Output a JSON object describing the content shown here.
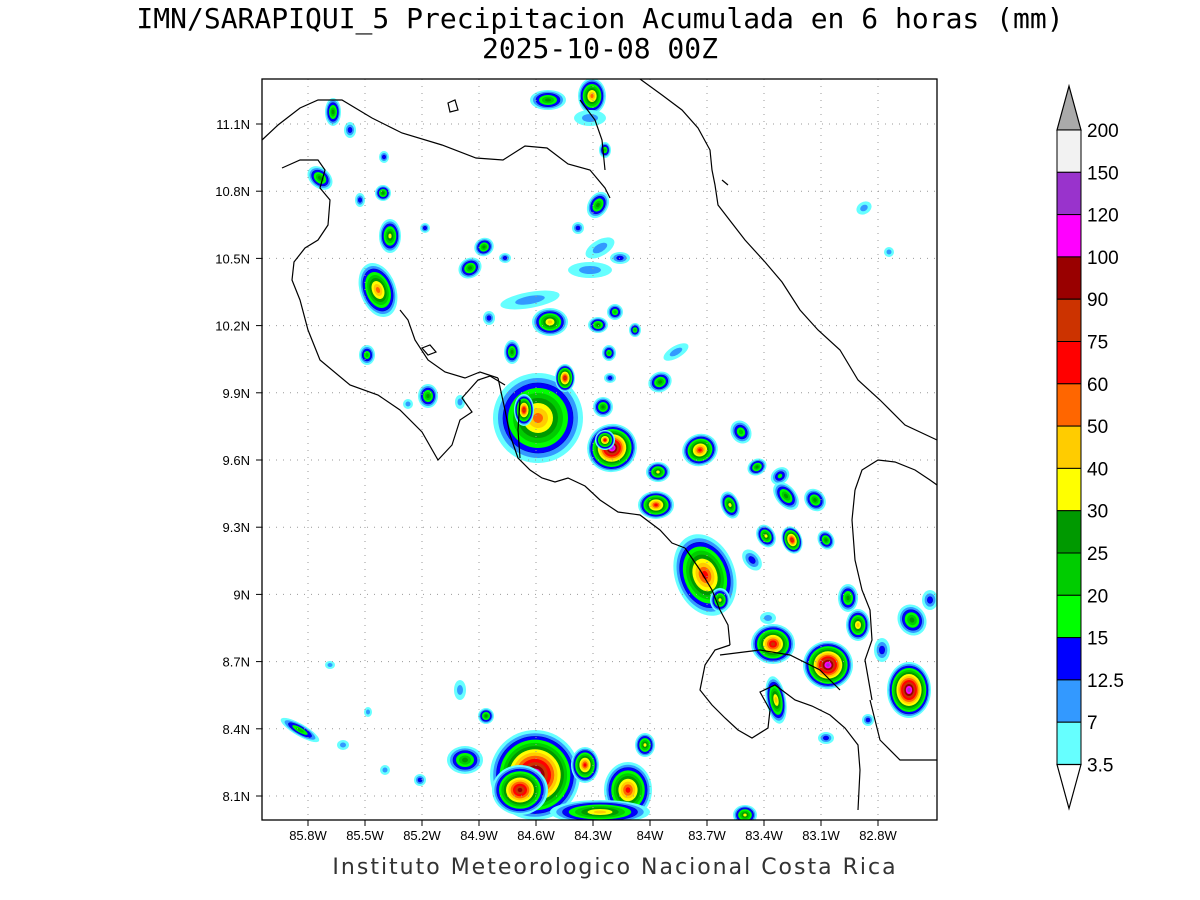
{
  "title": {
    "line1": "IMN/SARAPIQUI_5 Precipitacion Acumulada en 6 horas (mm)",
    "line2": "2025-10-08 00Z"
  },
  "axes": {
    "lat_labels": [
      "11.1N",
      "10.8N",
      "10.5N",
      "10.2N",
      "9.9N",
      "9.6N",
      "9.3N",
      "9N",
      "8.7N",
      "8.4N",
      "8.1N"
    ],
    "lon_labels": [
      "85.8W",
      "85.5W",
      "85.2W",
      "84.9W",
      "84.6W",
      "84.3W",
      "84W",
      "83.7W",
      "83.4W",
      "83.1W",
      "82.8W"
    ],
    "lat_values": [
      11.1,
      10.8,
      10.5,
      10.2,
      9.9,
      9.6,
      9.3,
      9.0,
      8.7,
      8.4,
      8.1
    ],
    "lon_values": [
      -85.8,
      -85.5,
      -85.2,
      -84.9,
      -84.6,
      -84.3,
      -84.0,
      -83.7,
      -83.4,
      -83.1,
      -82.8
    ]
  },
  "colorbar": {
    "labels": [
      "3.5",
      "7",
      "12.5",
      "15",
      "20",
      "25",
      "30",
      "40",
      "50",
      "60",
      "75",
      "90",
      "100",
      "120",
      "150",
      "200"
    ],
    "colors": [
      "#66ffff",
      "#3399ff",
      "#0000ff",
      "#00ff00",
      "#00cc00",
      "#009900",
      "#ffff00",
      "#ffcc00",
      "#ff6600",
      "#ff0000",
      "#cc3300",
      "#990000",
      "#ff00ff",
      "#9933cc",
      "#f2f2f2",
      "#aaaaaa"
    ]
  },
  "footer": "Instituto Meteorologico Nacional Costa Rica"
}
